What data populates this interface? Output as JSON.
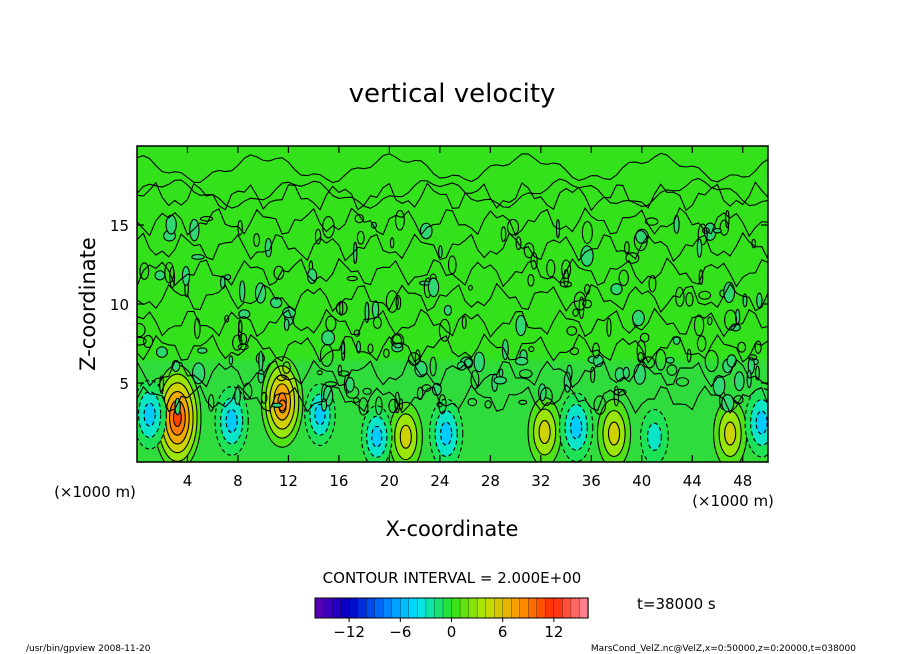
{
  "chart_data": {
    "type": "heatmap",
    "title": "vertical velocity",
    "xlabel": "X-coordinate",
    "ylabel": "Z-coordinate",
    "x_unit_left": "(×1000 m)",
    "x_unit_right": "(×1000 m)",
    "xlim": [
      0,
      50
    ],
    "ylim": [
      0,
      20
    ],
    "x_ticks": [
      4,
      8,
      12,
      16,
      20,
      24,
      28,
      32,
      36,
      40,
      44,
      48
    ],
    "y_ticks": [
      5,
      10,
      15
    ],
    "contour_interval_label": "CONTOUR INTERVAL = 2.000E+00",
    "time_label": "t=38000 s",
    "colorbar": {
      "range": [
        -16,
        16
      ],
      "ticks": [
        -12,
        -6,
        0,
        6,
        12
      ],
      "tick_labels": [
        "−12",
        "−6",
        "0",
        "6",
        "12"
      ]
    },
    "features": [
      {
        "x": 3.2,
        "z": 2.8,
        "w": 9.0
      },
      {
        "x": 11.5,
        "z": 3.8,
        "w": 7.0
      },
      {
        "x": 21.3,
        "z": 1.6,
        "w": 4.0
      },
      {
        "x": 32.3,
        "z": 1.9,
        "w": 4.0
      },
      {
        "x": 37.8,
        "z": 1.8,
        "w": 4.0
      },
      {
        "x": 47.0,
        "z": 1.8,
        "w": 4.0
      },
      {
        "x": 1.0,
        "z": 3.0,
        "w": -4.0
      },
      {
        "x": 7.5,
        "z": 2.6,
        "w": -4.0
      },
      {
        "x": 14.5,
        "z": 3.0,
        "w": -3.0
      },
      {
        "x": 19.0,
        "z": 1.6,
        "w": -3.0
      },
      {
        "x": 24.5,
        "z": 1.8,
        "w": -4.0
      },
      {
        "x": 34.8,
        "z": 2.2,
        "w": -4.0
      },
      {
        "x": 41.0,
        "z": 1.6,
        "w": -2.0
      },
      {
        "x": 49.5,
        "z": 2.5,
        "w": -4.0
      }
    ]
  },
  "footer": {
    "left": "/usr/bin/gpview  2008-11-20",
    "right": "MarsCond_VelZ.nc@VelZ,x=0:50000,z=0:20000,t=038000"
  }
}
